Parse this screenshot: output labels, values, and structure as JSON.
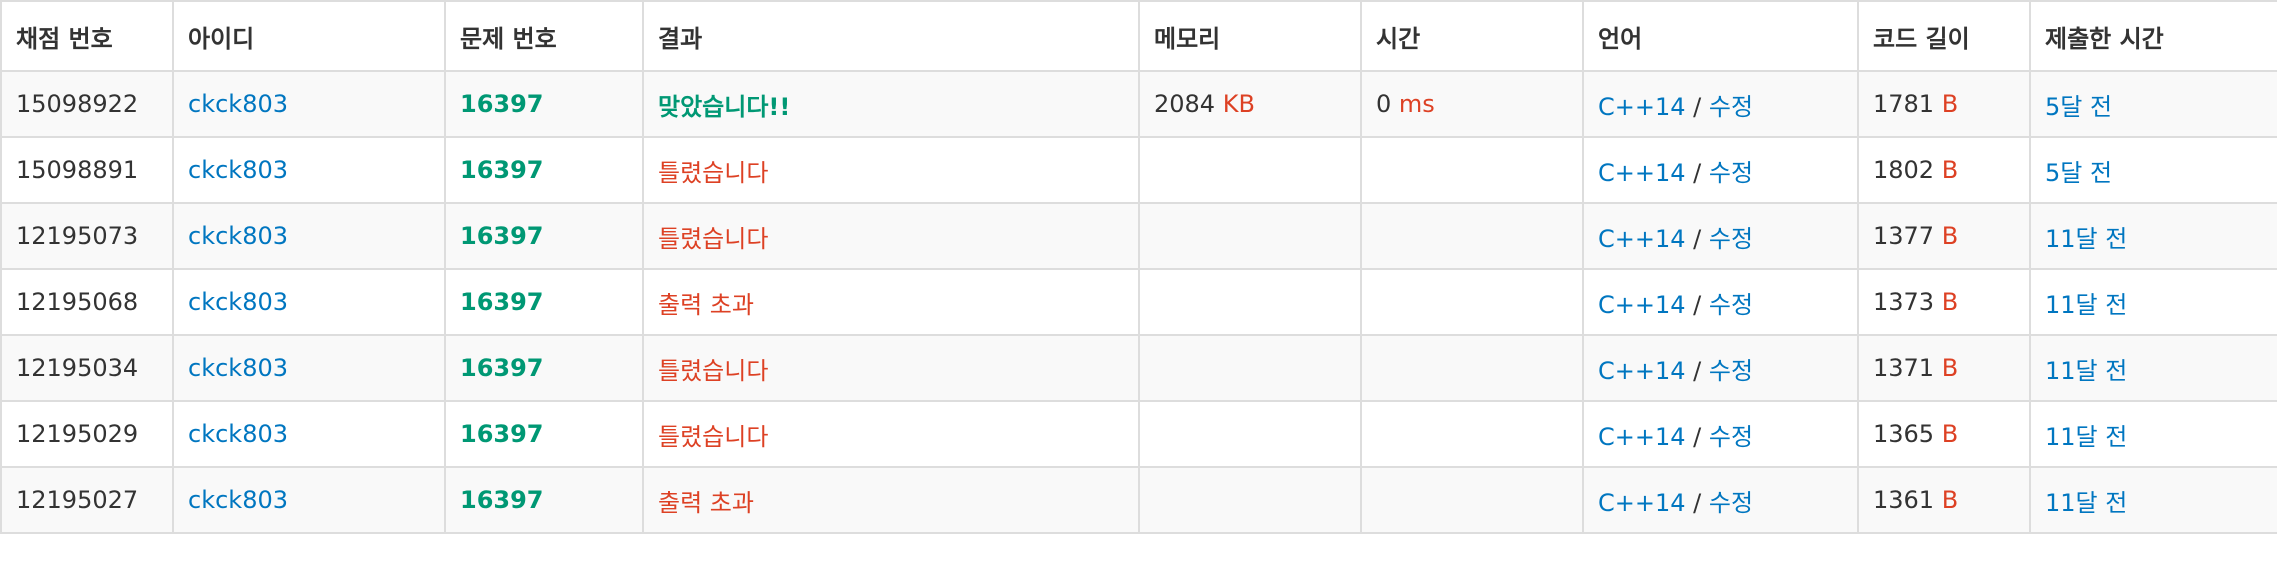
{
  "columns": [
    "채점 번호",
    "아이디",
    "문제 번호",
    "결과",
    "메모리",
    "시간",
    "언어",
    "코드 길이",
    "제출한 시간"
  ],
  "colors": {
    "accepted": "#009874",
    "wrong": "#dd4124",
    "link": "#0076c0",
    "unit": "#dd4124"
  },
  "rows": [
    {
      "id": "15098922",
      "user": "ckck803",
      "problem": "16397",
      "result": "맞았습니다!!",
      "result_type": "ac",
      "memory": "2084",
      "memory_unit": "KB",
      "time": "0",
      "time_unit": "ms",
      "lang": "C++14",
      "sep": "/",
      "edit": "수정",
      "code_len": "1781",
      "code_unit": "B",
      "submitted": "5달 전"
    },
    {
      "id": "15098891",
      "user": "ckck803",
      "problem": "16397",
      "result": "틀렸습니다",
      "result_type": "wa",
      "memory": "",
      "memory_unit": "",
      "time": "",
      "time_unit": "",
      "lang": "C++14",
      "sep": "/",
      "edit": "수정",
      "code_len": "1802",
      "code_unit": "B",
      "submitted": "5달 전"
    },
    {
      "id": "12195073",
      "user": "ckck803",
      "problem": "16397",
      "result": "틀렸습니다",
      "result_type": "wa",
      "memory": "",
      "memory_unit": "",
      "time": "",
      "time_unit": "",
      "lang": "C++14",
      "sep": "/",
      "edit": "수정",
      "code_len": "1377",
      "code_unit": "B",
      "submitted": "11달 전"
    },
    {
      "id": "12195068",
      "user": "ckck803",
      "problem": "16397",
      "result": "출력 초과",
      "result_type": "ole",
      "memory": "",
      "memory_unit": "",
      "time": "",
      "time_unit": "",
      "lang": "C++14",
      "sep": "/",
      "edit": "수정",
      "code_len": "1373",
      "code_unit": "B",
      "submitted": "11달 전"
    },
    {
      "id": "12195034",
      "user": "ckck803",
      "problem": "16397",
      "result": "틀렸습니다",
      "result_type": "wa",
      "memory": "",
      "memory_unit": "",
      "time": "",
      "time_unit": "",
      "lang": "C++14",
      "sep": "/",
      "edit": "수정",
      "code_len": "1371",
      "code_unit": "B",
      "submitted": "11달 전"
    },
    {
      "id": "12195029",
      "user": "ckck803",
      "problem": "16397",
      "result": "틀렸습니다",
      "result_type": "wa",
      "memory": "",
      "memory_unit": "",
      "time": "",
      "time_unit": "",
      "lang": "C++14",
      "sep": "/",
      "edit": "수정",
      "code_len": "1365",
      "code_unit": "B",
      "submitted": "11달 전"
    },
    {
      "id": "12195027",
      "user": "ckck803",
      "problem": "16397",
      "result": "출력 초과",
      "result_type": "ole",
      "memory": "",
      "memory_unit": "",
      "time": "",
      "time_unit": "",
      "lang": "C++14",
      "sep": "/",
      "edit": "수정",
      "code_len": "1361",
      "code_unit": "B",
      "submitted": "11달 전"
    }
  ]
}
